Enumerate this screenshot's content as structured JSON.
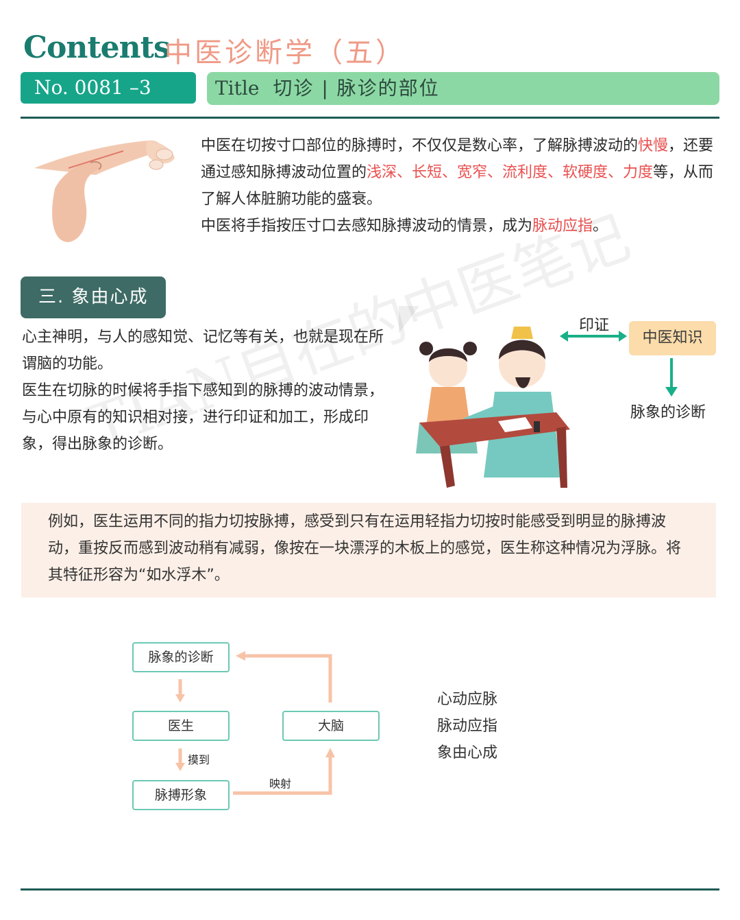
{
  "header": {
    "contents_word": "Contents",
    "main_title": "中医诊断学（五）",
    "number_label": "No. 0081 –3",
    "title_word": "Title",
    "title_text": "切诊 | 脉诊的部位"
  },
  "intro": {
    "p1_a": "中医在切按寸口部位的脉搏时，不仅仅是数心率，了解脉搏波动的",
    "p1_hl": "快慢",
    "p1_b": "，还要通过感知脉搏波动位置的",
    "p1_hl2": "浅深、长短、宽窄、流利度、软硬度、力度",
    "p1_c": "等，从而了解人体脏腑功能的盛衰。",
    "p2_a": "中医将手指按压寸口去感知脉搏波动的情景，成为",
    "p2_hl": "脉动应指",
    "p2_b": "。"
  },
  "section": {
    "badge": "三. 象由心成",
    "p1": "心主神明，与人的感知觉、记忆等有关，也就是现在所谓脑的功能。",
    "p2": "医生在切脉的时候将手指下感知到的脉搏的波动情景，与心中原有的知识相对接，进行印证和加工，形成印象，得出脉象的诊断。"
  },
  "scene_diagram": {
    "arrow_label": "印证",
    "box": "中医知识",
    "result": "脉象的诊断"
  },
  "example": {
    "text": "例如，医生运用不同的指力切按脉搏，感受到只有在运用轻指力切按时能感受到明显的脉搏波动，重按反而感到波动稍有减弱，像按在一块漂浮的木板上的感觉，医生称这种情况为浮脉。将其特征形容为“如水浮木”。"
  },
  "flow": {
    "diagnosis": "脉象的诊断",
    "doctor": "医生",
    "brain": "大脑",
    "pulse_image": "脉搏形象",
    "touch_label": "摸到",
    "map_label": "映射"
  },
  "side_list": [
    "心动应脉",
    "脉动应指",
    "象由心成"
  ],
  "watermark": "TIAN自在的中医笔记",
  "colors": {
    "brand_green": "#17a58a",
    "title_bar": "#8cd8a4",
    "highlight_red": "#e8504f",
    "title_salmon": "#ef9a86",
    "section_badge": "#3e6b65",
    "example_bg": "#fcefe7"
  }
}
